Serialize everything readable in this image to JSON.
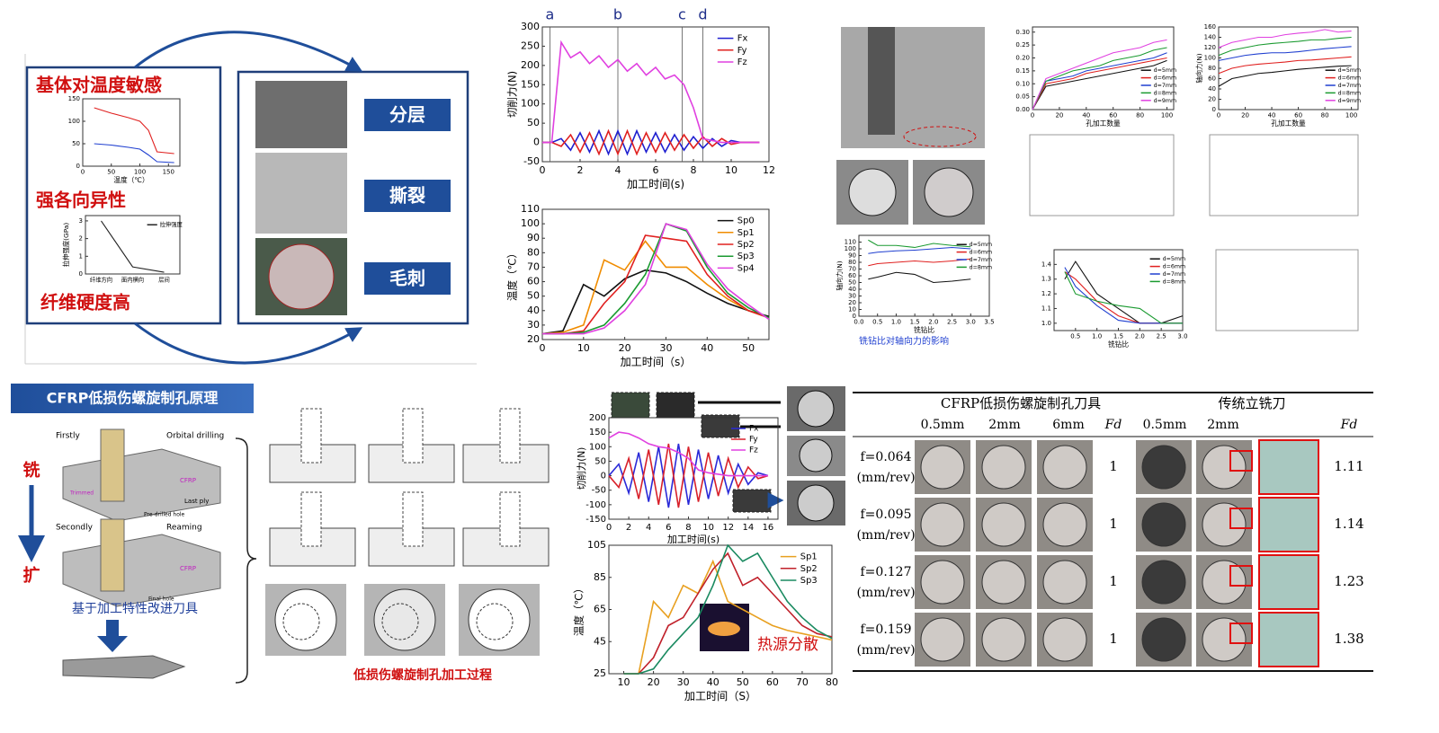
{
  "top_left": {
    "features": [
      "基体对温度敏感",
      "强各向异性",
      "纤维硬度高"
    ],
    "damage": [
      "分层",
      "撕裂",
      "毛刺"
    ]
  },
  "bottom_left": {
    "title": "CFRP低损伤螺旋制孔原理",
    "steps": [
      "铣",
      "扩"
    ],
    "labels": [
      "Firstly",
      "Orbital drilling",
      "Secondly",
      "Reaming",
      "CFRP",
      "CFRP",
      "Trimmed",
      "Pre-drilled hole",
      "Last ply",
      "Final hole"
    ],
    "caption": "基于加工特性改进刀具",
    "process_caption": "低损伤螺旋制孔加工过程"
  },
  "top_right": {
    "caption": "铣钻比对轴向力的影响"
  },
  "heat_note": "热源分散",
  "table": {
    "group_new": "CFRP低损伤螺旋制孔刀具",
    "group_trad": "传统立铣刀",
    "columns": [
      "0.5mm",
      "2mm",
      "6mm",
      "Fd",
      "0.5mm",
      "2mm",
      "Fd"
    ],
    "rows": [
      {
        "feed": "f=0.064",
        "unit": "(mm/rev)",
        "fd_new": "1",
        "fd_trad": "1.11"
      },
      {
        "feed": "f=0.095",
        "unit": "(mm/rev)",
        "fd_new": "1",
        "fd_trad": "1.14"
      },
      {
        "feed": "f=0.127",
        "unit": "(mm/rev)",
        "fd_new": "1",
        "fd_trad": "1.23"
      },
      {
        "feed": "f=0.159",
        "unit": "(mm/rev)",
        "fd_new": "1",
        "fd_trad": "1.38"
      }
    ]
  },
  "chart_data": [
    {
      "type": "line",
      "xlabel": "加工时间(s)",
      "ylabel": "切削力(N)",
      "xlim": [
        0,
        12
      ],
      "ylim": [
        -50,
        300
      ],
      "xticks": [
        0,
        2,
        4,
        6,
        8,
        10,
        12
      ],
      "yticks": [
        -50,
        0,
        50,
        100,
        150,
        200,
        250,
        300
      ],
      "legend": "upper right",
      "phase_marks": [
        {
          "label": "a",
          "x": 0.4
        },
        {
          "label": "b",
          "x": 4
        },
        {
          "label": "c",
          "x": 7.4
        },
        {
          "label": "d",
          "x": 8.5
        }
      ],
      "x": [
        0,
        0.5,
        1,
        1.5,
        2,
        2.5,
        3,
        3.5,
        4,
        4.5,
        5,
        5.5,
        6,
        6.5,
        7,
        7.5,
        8,
        8.5,
        9,
        9.5,
        10,
        10.5,
        11,
        11.5
      ],
      "series": [
        {
          "name": "Fx",
          "color": "#1f1fd0",
          "values": [
            0,
            0,
            10,
            -20,
            25,
            -25,
            30,
            -30,
            30,
            -30,
            30,
            -25,
            25,
            -25,
            20,
            -20,
            15,
            -15,
            10,
            -10,
            5,
            0,
            0,
            0
          ]
        },
        {
          "name": "Fy",
          "color": "#e0201f",
          "values": [
            0,
            0,
            -10,
            20,
            -25,
            25,
            -30,
            30,
            -30,
            30,
            -30,
            25,
            -25,
            25,
            -20,
            20,
            -15,
            15,
            -10,
            10,
            -5,
            0,
            0,
            0
          ]
        },
        {
          "name": "Fz",
          "color": "#e040e0",
          "values": [
            0,
            0,
            260,
            220,
            235,
            205,
            225,
            195,
            215,
            185,
            205,
            175,
            195,
            165,
            175,
            150,
            90,
            10,
            5,
            0,
            0,
            0,
            0,
            0
          ]
        }
      ]
    },
    {
      "type": "line",
      "xlabel": "加工时间（s）",
      "ylabel": "温度（℃）",
      "xlim": [
        0,
        55
      ],
      "ylim": [
        20,
        110
      ],
      "xticks": [
        0,
        10,
        20,
        30,
        40,
        50
      ],
      "yticks": [
        20,
        30,
        40,
        50,
        60,
        70,
        80,
        90,
        100,
        110
      ],
      "legend": "upper right",
      "x": [
        0,
        5,
        10,
        15,
        20,
        25,
        30,
        35,
        40,
        45,
        50,
        55
      ],
      "series": [
        {
          "name": "Sp0",
          "color": "#111111",
          "values": [
            24,
            26,
            58,
            50,
            62,
            68,
            66,
            60,
            52,
            45,
            40,
            36
          ]
        },
        {
          "name": "Sp1",
          "color": "#f08c00",
          "values": [
            24,
            25,
            30,
            75,
            68,
            88,
            70,
            70,
            58,
            48,
            40,
            35
          ]
        },
        {
          "name": "Sp2",
          "color": "#e0201f",
          "values": [
            24,
            24,
            26,
            45,
            60,
            92,
            90,
            88,
            65,
            50,
            40,
            35
          ]
        },
        {
          "name": "Sp3",
          "color": "#1a9a30",
          "values": [
            24,
            24,
            25,
            30,
            45,
            65,
            100,
            95,
            70,
            52,
            42,
            35
          ]
        },
        {
          "name": "Sp4",
          "color": "#e040e0",
          "values": [
            24,
            24,
            24,
            28,
            40,
            58,
            100,
            96,
            72,
            55,
            44,
            34
          ]
        }
      ]
    },
    {
      "type": "line",
      "xlabel": "加工时间(s)",
      "ylabel": "切削力(N)",
      "xlim": [
        0,
        17
      ],
      "ylim": [
        -150,
        200
      ],
      "xticks": [
        0,
        2,
        4,
        6,
        8,
        10,
        12,
        14,
        16
      ],
      "yticks": [
        -150,
        -100,
        -50,
        0,
        50,
        100,
        150,
        200
      ],
      "legend": "upper right",
      "x": [
        0,
        1,
        2,
        3,
        4,
        5,
        6,
        7,
        8,
        9,
        10,
        11,
        12,
        13,
        14,
        15,
        16
      ],
      "series": [
        {
          "name": "Fx",
          "color": "#2a2ad8",
          "values": [
            0,
            40,
            -60,
            80,
            -90,
            100,
            -110,
            110,
            -100,
            90,
            -80,
            70,
            -60,
            40,
            -30,
            10,
            0
          ]
        },
        {
          "name": "Fy",
          "color": "#d8202a",
          "values": [
            0,
            -40,
            60,
            -80,
            90,
            -100,
            110,
            -110,
            100,
            -90,
            80,
            -70,
            60,
            -40,
            30,
            -10,
            0
          ]
        },
        {
          "name": "Fz",
          "color": "#e040e0",
          "values": [
            130,
            150,
            145,
            130,
            110,
            100,
            95,
            80,
            60,
            20,
            10,
            5,
            0,
            0,
            0,
            0,
            0
          ]
        }
      ]
    },
    {
      "type": "line",
      "xlabel": "加工时间（S）",
      "ylabel": "温度（℃）",
      "xlim": [
        5,
        80
      ],
      "ylim": [
        25,
        105
      ],
      "xticks": [
        10,
        20,
        30,
        40,
        50,
        60,
        70,
        80
      ],
      "yticks": [
        25,
        45,
        65,
        85,
        105
      ],
      "legend": "upper right",
      "x": [
        10,
        15,
        20,
        25,
        30,
        35,
        40,
        45,
        50,
        55,
        60,
        65,
        70,
        75,
        80
      ],
      "series": [
        {
          "name": "Sp1",
          "color": "#e8a020",
          "values": [
            25,
            25,
            70,
            60,
            80,
            75,
            95,
            70,
            65,
            60,
            55,
            52,
            50,
            48,
            46
          ]
        },
        {
          "name": "Sp2",
          "color": "#c0202a",
          "values": [
            25,
            25,
            35,
            55,
            60,
            75,
            90,
            100,
            80,
            85,
            75,
            65,
            55,
            50,
            48
          ]
        },
        {
          "name": "Sp3",
          "color": "#1a8a60",
          "values": [
            25,
            25,
            28,
            40,
            50,
            60,
            80,
            105,
            95,
            100,
            85,
            70,
            60,
            52,
            47
          ]
        }
      ]
    },
    {
      "type": "line",
      "ylabel": "拉伸强度(GPa)",
      "ylim": [
        0,
        3.3
      ],
      "yticks": [
        0,
        1,
        2,
        3
      ],
      "legend": "upper right",
      "categories": [
        "纤维方向",
        "面内横向",
        "层间"
      ],
      "series": [
        {
          "name": "拉伸强度",
          "color": "#222222",
          "values": [
            3,
            0.4,
            0.1
          ]
        }
      ]
    },
    {
      "type": "line",
      "xlabel": "温度（℃）",
      "xlim": [
        0,
        170
      ],
      "ylim": [
        0,
        150
      ],
      "xticks": [
        0,
        50,
        100,
        150
      ],
      "yticks": [
        0,
        50,
        100,
        150
      ],
      "x": [
        20,
        50,
        80,
        100,
        115,
        130,
        160
      ],
      "series": [
        {
          "color": "#e0201f",
          "values": [
            130,
            118,
            108,
            100,
            80,
            32,
            28
          ]
        },
        {
          "color": "#1f3fd0",
          "values": [
            50,
            47,
            42,
            38,
            25,
            10,
            8
          ]
        }
      ]
    },
    {
      "type": "line",
      "xlabel": "孔加工数量",
      "xlim": [
        0,
        105
      ],
      "ylim": [
        0,
        0.32
      ],
      "xticks": [
        0,
        20,
        40,
        60,
        80,
        100
      ],
      "yticks": [
        {
          "value": 0,
          "label": "0.00"
        },
        0.05,
        {
          "value": 0.1,
          "label": "0.10"
        },
        0.15,
        {
          "value": 0.2,
          "label": "0.20"
        },
        0.25,
        {
          "value": 0.3,
          "label": "0.30"
        }
      ],
      "legend": "lower right",
      "x": [
        0,
        10,
        20,
        30,
        40,
        50,
        60,
        70,
        80,
        90,
        100
      ],
      "series": [
        {
          "name": "d=5mm",
          "color": "#111111",
          "values": [
            0,
            0.09,
            0.1,
            0.11,
            0.12,
            0.13,
            0.14,
            0.15,
            0.16,
            0.17,
            0.19
          ]
        },
        {
          "name": "d=6mm",
          "color": "#e0201f",
          "values": [
            0,
            0.1,
            0.11,
            0.12,
            0.14,
            0.15,
            0.16,
            0.17,
            0.18,
            0.19,
            0.2
          ]
        },
        {
          "name": "d=7mm",
          "color": "#1f3fd0",
          "values": [
            0,
            0.11,
            0.12,
            0.13,
            0.15,
            0.16,
            0.17,
            0.18,
            0.19,
            0.2,
            0.22
          ]
        },
        {
          "name": "d=8mm",
          "color": "#1a9a30",
          "values": [
            0,
            0.11,
            0.13,
            0.15,
            0.16,
            0.17,
            0.19,
            0.2,
            0.21,
            0.23,
            0.24
          ]
        },
        {
          "name": "d=9mm",
          "color": "#e040e0",
          "values": [
            0,
            0.12,
            0.14,
            0.16,
            0.18,
            0.2,
            0.22,
            0.23,
            0.24,
            0.26,
            0.27
          ]
        }
      ]
    },
    {
      "type": "line",
      "xlabel": "铣钻比",
      "ylabel": "轴向力(N)",
      "xlim": [
        0,
        3.5
      ],
      "ylim": [
        0,
        120
      ],
      "xticks": [
        {
          "value": 0,
          "label": "0.0"
        },
        0.5,
        {
          "value": 1,
          "label": "1.0"
        },
        1.5,
        {
          "value": 2,
          "label": "2.0"
        },
        2.5,
        {
          "value": 3,
          "label": "3.0"
        },
        3.5
      ],
      "yticks": [
        0,
        10,
        20,
        30,
        40,
        50,
        60,
        70,
        80,
        90,
        100,
        110
      ],
      "legend": "upper right",
      "x": [
        0.25,
        0.5,
        1,
        1.5,
        2,
        2.5,
        3
      ],
      "series": [
        {
          "name": "d=5mm",
          "color": "#111111",
          "values": [
            55,
            58,
            65,
            62,
            50,
            52,
            55
          ]
        },
        {
          "name": "d=6mm",
          "color": "#e0201f",
          "values": [
            75,
            78,
            80,
            82,
            80,
            82,
            85
          ]
        },
        {
          "name": "d=7mm",
          "color": "#1f3fd0",
          "values": [
            93,
            95,
            97,
            98,
            100,
            102,
            100
          ]
        },
        {
          "name": "d=8mm",
          "color": "#1a9a30",
          "values": [
            113,
            105,
            105,
            102,
            108,
            105,
            103
          ]
        }
      ]
    },
    {
      "type": "line",
      "xlabel": "铣钻比",
      "xlim": [
        0,
        3
      ],
      "ylim": [
        0.95,
        1.5
      ],
      "xticks": [
        0.5,
        {
          "value": 1,
          "label": "1.0"
        },
        1.5,
        {
          "value": 2,
          "label": "2.0"
        },
        2.5,
        {
          "value": 3,
          "label": "3.0"
        }
      ],
      "yticks": [
        {
          "value": 1,
          "label": "1.0"
        },
        1.1,
        1.2,
        1.3,
        1.4
      ],
      "legend": "upper right",
      "x": [
        0.25,
        0.5,
        1,
        1.5,
        2,
        2.5,
        3
      ],
      "series": [
        {
          "name": "d=5mm",
          "color": "#111111",
          "values": [
            1.3,
            1.42,
            1.2,
            1.1,
            1,
            1,
            1.05
          ]
        },
        {
          "name": "d=6mm",
          "color": "#e0201f",
          "values": [
            1.35,
            1.3,
            1.15,
            1.05,
            1,
            1,
            1
          ]
        },
        {
          "name": "d=7mm",
          "color": "#1f3fd0",
          "values": [
            1.38,
            1.25,
            1.12,
            1.02,
            1,
            1,
            1
          ]
        },
        {
          "name": "d=8mm",
          "color": "#1a9a30",
          "values": [
            1.35,
            1.2,
            1.15,
            1.12,
            1.1,
            1,
            1
          ]
        }
      ]
    },
    {
      "type": "line",
      "xlabel": "孔加工数量",
      "ylabel": "轴向力(N)",
      "xlim": [
        0,
        105
      ],
      "ylim": [
        0,
        160
      ],
      "xticks": [
        0,
        20,
        40,
        60,
        80,
        100
      ],
      "yticks": [
        0,
        20,
        40,
        60,
        80,
        100,
        120,
        140,
        160
      ],
      "legend": "lower right",
      "x": [
        0,
        10,
        20,
        30,
        40,
        50,
        60,
        70,
        80,
        90,
        100
      ],
      "series": [
        {
          "name": "d=5mm",
          "color": "#111111",
          "values": [
            45,
            60,
            65,
            70,
            72,
            75,
            78,
            80,
            82,
            84,
            85
          ]
        },
        {
          "name": "d=6mm",
          "color": "#e0201f",
          "values": [
            70,
            80,
            85,
            88,
            90,
            92,
            95,
            96,
            98,
            100,
            102
          ]
        },
        {
          "name": "d=7mm",
          "color": "#1f3fd0",
          "values": [
            95,
            100,
            105,
            108,
            110,
            110,
            112,
            115,
            118,
            120,
            122
          ]
        },
        {
          "name": "d=8mm",
          "color": "#1a9a30",
          "values": [
            105,
            115,
            120,
            125,
            128,
            130,
            132,
            135,
            135,
            138,
            140
          ]
        },
        {
          "name": "d=9mm",
          "color": "#e040e0",
          "values": [
            120,
            130,
            135,
            140,
            140,
            145,
            148,
            150,
            155,
            150,
            152
          ]
        }
      ]
    }
  ]
}
